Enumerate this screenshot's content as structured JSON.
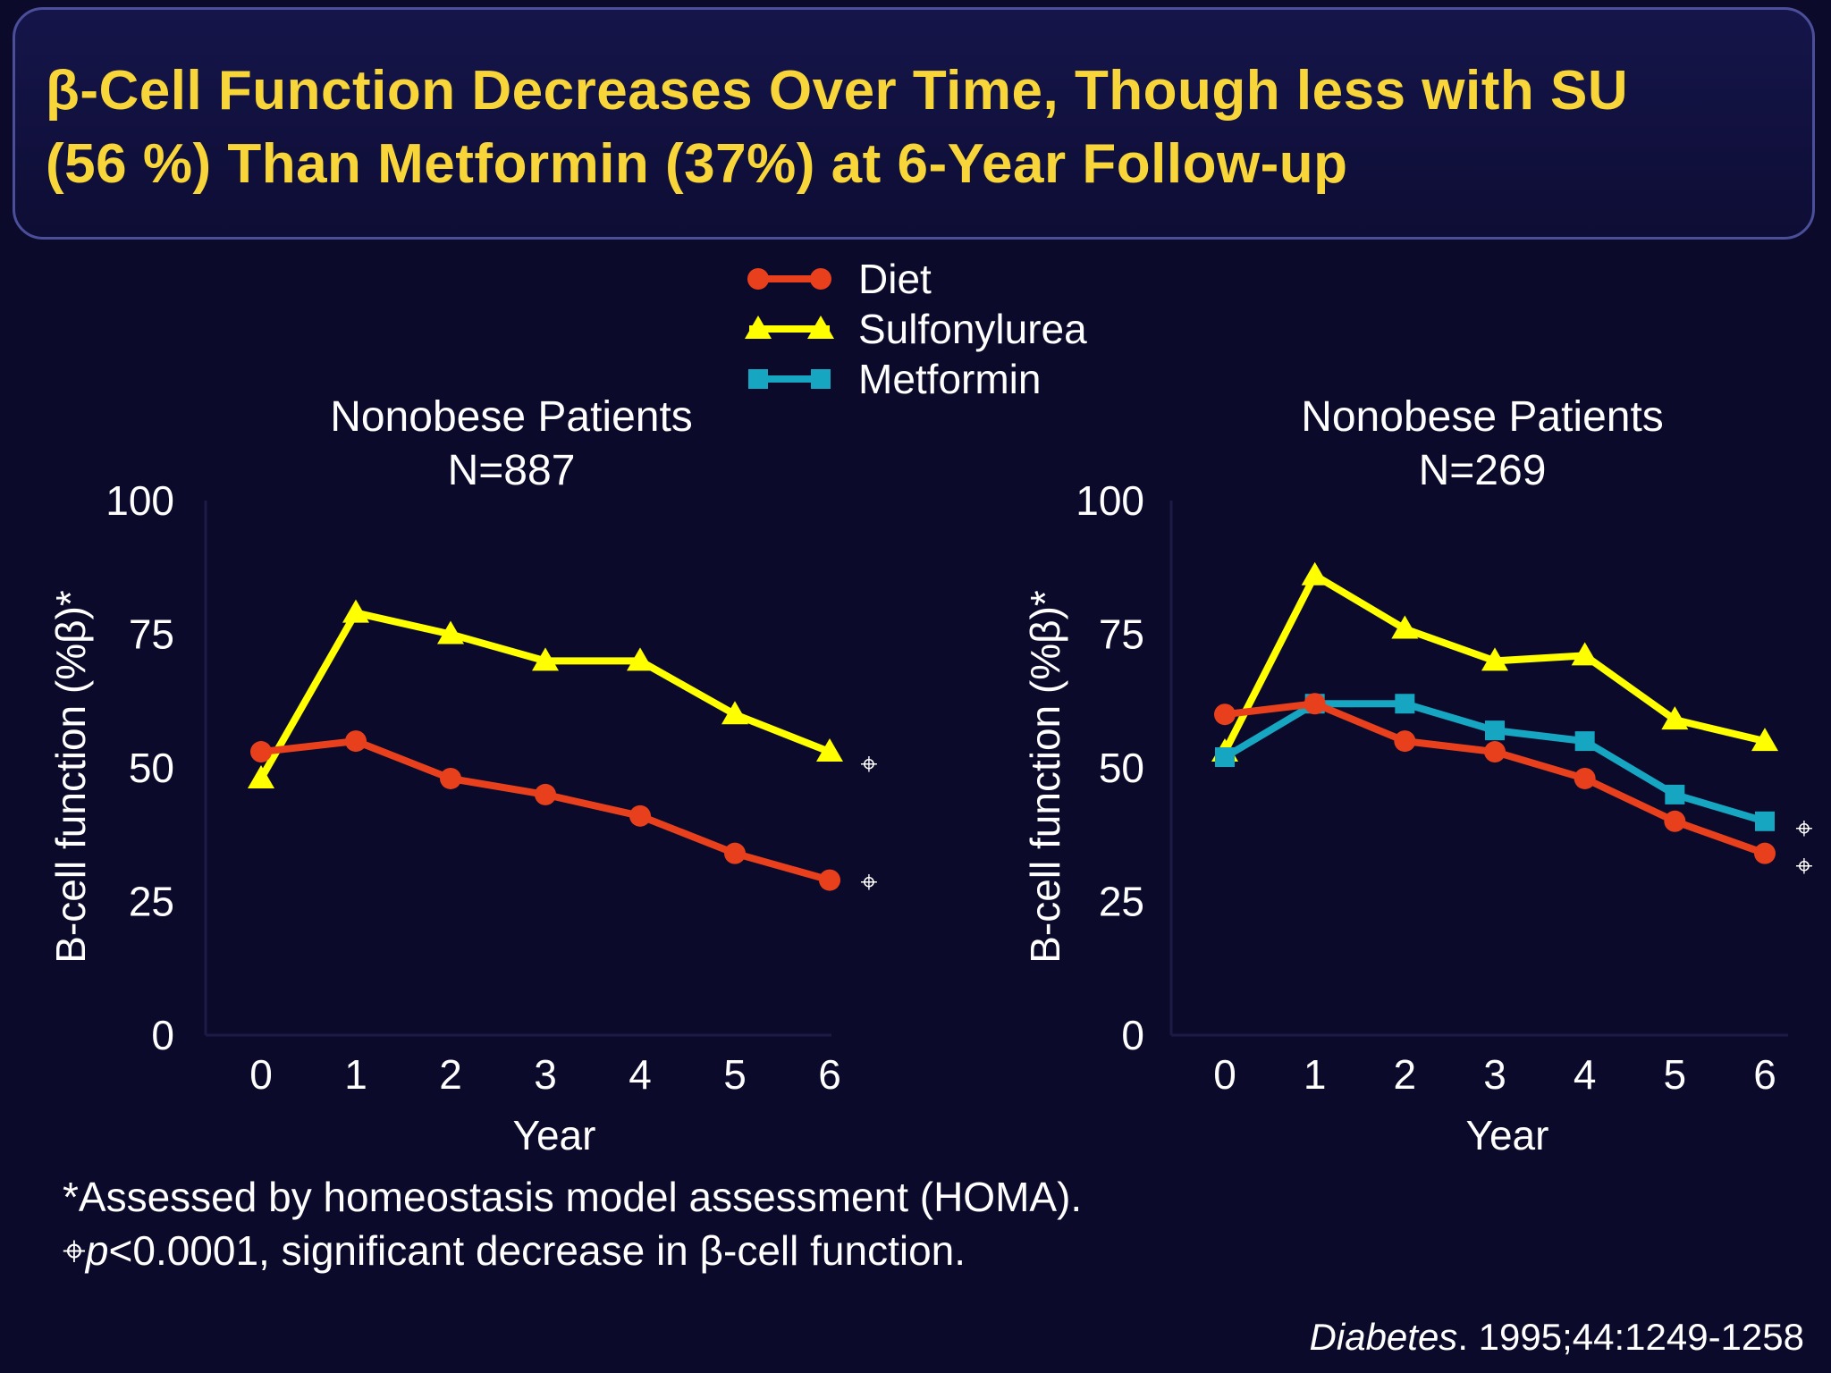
{
  "slide": {
    "title_line1": "β-Cell Function Decreases Over Time, Though less with SU",
    "title_line2": "(56 %) Than Metformin (37%) at 6-Year Follow-up",
    "footnote1": "*Assessed by homeostasis model assessment (HOMA).",
    "footnote2_symbol": "⌖",
    "footnote2_p": "p",
    "footnote2_rest": "<0.0001, significant decrease in β-cell function.",
    "citation_journal": "Diabetes",
    "citation_rest": ". 1995;44:1249-1258",
    "significance_symbol": "⌖"
  },
  "legend": {
    "position": "top-center",
    "items": [
      {
        "label": "Diet",
        "color": "#e8401c",
        "marker": "circle"
      },
      {
        "label": "Sulfonylurea",
        "color": "#ffff00",
        "marker": "triangle"
      },
      {
        "label": "Metformin",
        "color": "#16a6c2",
        "marker": "square"
      }
    ]
  },
  "chart_data": [
    {
      "type": "line",
      "title": "Nonobese Patients",
      "subtitle": "N=887",
      "xlabel": "Year",
      "ylabel": "B-cell function (%β)*",
      "x": [
        0,
        1,
        2,
        3,
        4,
        5,
        6
      ],
      "xlim": [
        0,
        6
      ],
      "ylim": [
        0,
        100
      ],
      "yticks": [
        0,
        25,
        50,
        75,
        100
      ],
      "grid": false,
      "series": [
        {
          "name": "Sulfonylurea",
          "color": "#ffff00",
          "marker": "triangle",
          "values": [
            48,
            79,
            75,
            70,
            70,
            60,
            53
          ],
          "significant": true
        },
        {
          "name": "Diet",
          "color": "#e8401c",
          "marker": "circle",
          "values": [
            53,
            55,
            48,
            45,
            41,
            34,
            29
          ],
          "significant": true
        }
      ]
    },
    {
      "type": "line",
      "title": "Nonobese Patients",
      "subtitle": "N=269",
      "xlabel": "Year",
      "ylabel": "B-cell function (%β)*",
      "x": [
        0,
        1,
        2,
        3,
        4,
        5,
        6
      ],
      "xlim": [
        0,
        6
      ],
      "ylim": [
        0,
        100
      ],
      "yticks": [
        0,
        25,
        50,
        75,
        100
      ],
      "grid": false,
      "series": [
        {
          "name": "Sulfonylurea",
          "color": "#ffff00",
          "marker": "triangle",
          "values": [
            53,
            86,
            76,
            70,
            71,
            59,
            55
          ],
          "significant": false
        },
        {
          "name": "Metformin",
          "color": "#16a6c2",
          "marker": "square",
          "values": [
            52,
            62,
            62,
            57,
            55,
            45,
            40
          ],
          "significant": true
        },
        {
          "name": "Diet",
          "color": "#e8401c",
          "marker": "circle",
          "values": [
            60,
            62,
            55,
            53,
            48,
            40,
            34
          ],
          "significant": true
        }
      ]
    }
  ]
}
